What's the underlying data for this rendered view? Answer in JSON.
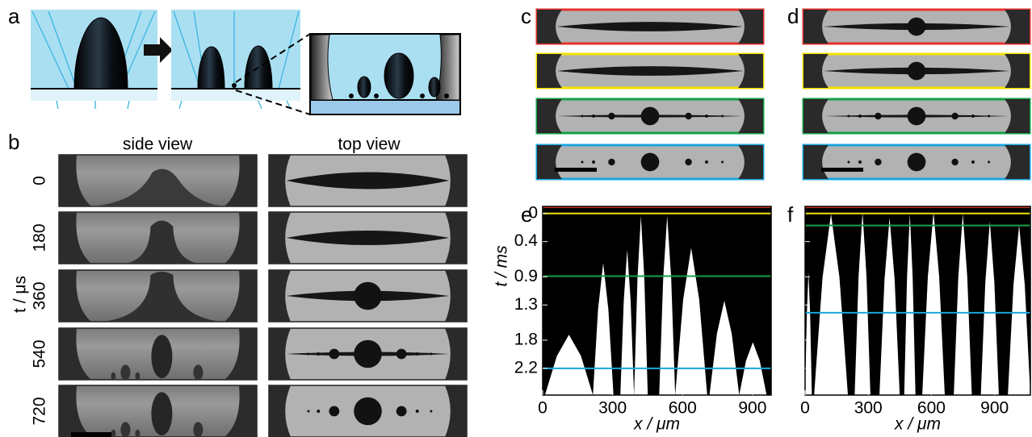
{
  "panel_labels": [
    "a",
    "b",
    "c",
    "d",
    "e",
    "f"
  ],
  "b": {
    "columns": [
      "side view",
      "top view"
    ],
    "axis_label": "t / μs",
    "rows": [
      "0",
      "180",
      "360",
      "540",
      "720"
    ]
  },
  "frame_colors": [
    "#e5322d",
    "#f2e200",
    "#16a048",
    "#1aa6e0"
  ],
  "e": {
    "ylabel": "t / ms",
    "xlabel": "x / μm",
    "xlim": [
      0,
      980
    ],
    "ylim": [
      -0.1,
      2.58
    ],
    "xticks": [
      0,
      300,
      600,
      900
    ],
    "yticks": [
      0,
      0.4,
      0.9,
      1.3,
      1.8,
      2.2
    ],
    "markers": [
      {
        "color": "#e5322d",
        "t": -0.09
      },
      {
        "color": "#f2e200",
        "t": 0
      },
      {
        "color": "#16a048",
        "t": 0.89
      },
      {
        "color": "#1aa6e0",
        "t": 2.2
      }
    ]
  },
  "f": {
    "xlabel": "x / μm",
    "xlim": [
      0,
      1070
    ],
    "ylim": [
      -0.1,
      2.58
    ],
    "xticks": [
      0,
      300,
      600,
      900
    ],
    "markers": [
      {
        "color": "#e5322d",
        "t": -0.09
      },
      {
        "color": "#f2e200",
        "t": 0
      },
      {
        "color": "#16a048",
        "t": 0.17
      },
      {
        "color": "#1aa6e0",
        "t": 1.41
      }
    ]
  }
}
